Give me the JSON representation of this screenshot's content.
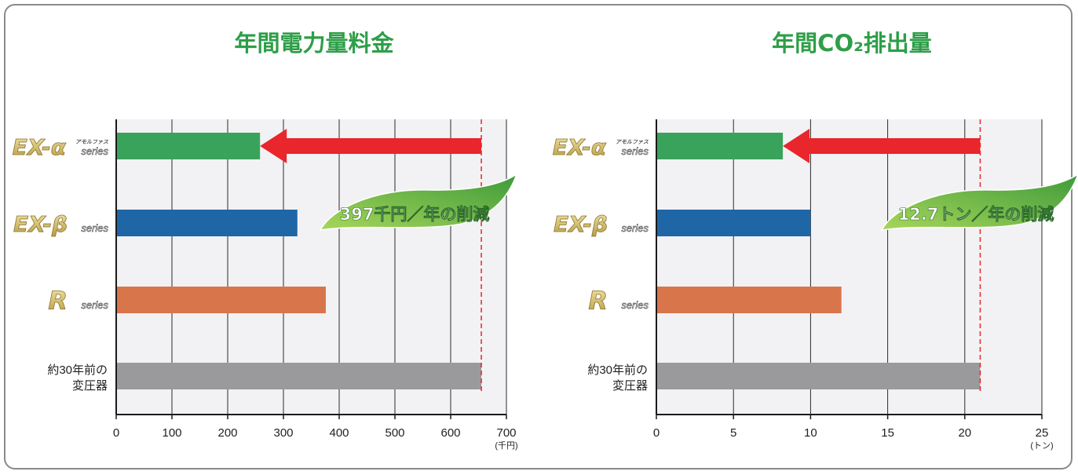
{
  "chart_data": [
    {
      "type": "bar",
      "title": "年間電力量料金",
      "categories": [
        "EX-α アモルファス series",
        "EX-β series",
        "R series",
        "約30年前の変圧器"
      ],
      "category_lines": [
        [
          "EX-α",
          "アモルファス",
          "series"
        ],
        [
          "EX-β",
          "series"
        ],
        [
          "R",
          "series"
        ],
        [
          "約30年前の",
          "変圧器"
        ]
      ],
      "values": [
        258,
        325,
        376,
        655
      ],
      "colors": [
        "#3aa35b",
        "#1f66a6",
        "#d9754a",
        "#9a9a9c"
      ],
      "xlim": [
        0,
        700
      ],
      "xticks": [
        0,
        100,
        200,
        300,
        400,
        500,
        600,
        700
      ],
      "unit_label": "(千円)",
      "reference_line": 655,
      "arrow_to": 258,
      "annotation": "397千円／年の削減",
      "grid": true
    },
    {
      "type": "bar",
      "title": "年間CO₂排出量",
      "categories": [
        "EX-α アモルファス series",
        "EX-β series",
        "R series",
        "約30年前の変圧器"
      ],
      "category_lines": [
        [
          "EX-α",
          "アモルファス",
          "series"
        ],
        [
          "EX-β",
          "series"
        ],
        [
          "R",
          "series"
        ],
        [
          "約30年前の",
          "変圧器"
        ]
      ],
      "values": [
        8.2,
        10,
        12,
        21
      ],
      "colors": [
        "#3aa35b",
        "#1f66a6",
        "#d9754a",
        "#9a9a9c"
      ],
      "xlim": [
        0,
        25
      ],
      "xticks": [
        0,
        5,
        10,
        15,
        20,
        25
      ],
      "unit_label": "(トン)",
      "reference_line": 21,
      "arrow_to": 8.2,
      "annotation": "12.7トン／年の削減",
      "grid": true
    }
  ],
  "colors": {
    "title": "#2e9e48",
    "plot_bg": "#f2f2f4",
    "arrow": "#e8262b",
    "leaf_light": "#a8d65a",
    "leaf_dark": "#3d9a3a",
    "logo_gold": "#d9c06a"
  }
}
